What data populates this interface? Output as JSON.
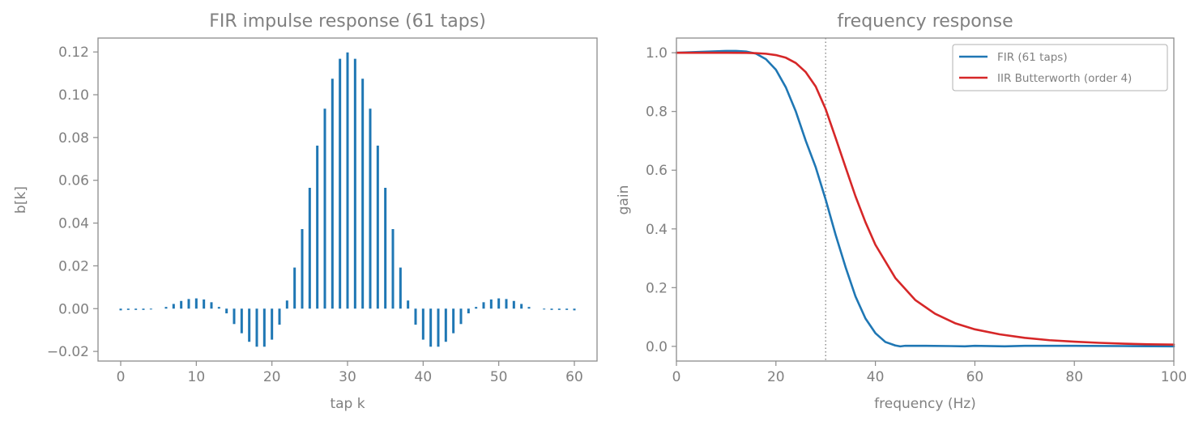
{
  "chart_data": [
    {
      "type": "bar",
      "subtype": "stem",
      "title": "FIR impulse response (61 taps)",
      "xlabel": "tap k",
      "ylabel": "b[k]",
      "xlim": [
        -3,
        63
      ],
      "ylim": [
        -0.0245,
        0.1265
      ],
      "xticks": [
        0,
        10,
        20,
        30,
        40,
        50,
        60
      ],
      "xtick_labels": [
        "0",
        "10",
        "20",
        "30",
        "40",
        "50",
        "60"
      ],
      "yticks": [
        -0.02,
        0.0,
        0.02,
        0.04,
        0.06,
        0.08,
        0.1,
        0.12
      ],
      "ytick_labels": [
        "−0.02",
        "0.00",
        "0.02",
        "0.04",
        "0.06",
        "0.08",
        "0.10",
        "0.12"
      ],
      "color": "#1f77b4",
      "grid": false,
      "x": [
        0,
        1,
        2,
        3,
        4,
        5,
        6,
        7,
        8,
        9,
        10,
        11,
        12,
        13,
        14,
        15,
        16,
        17,
        18,
        19,
        20,
        21,
        22,
        23,
        24,
        25,
        26,
        27,
        28,
        29,
        30,
        31,
        32,
        33,
        34,
        35,
        36,
        37,
        38,
        39,
        40,
        41,
        42,
        43,
        44,
        45,
        46,
        47,
        48,
        49,
        50,
        51,
        52,
        53,
        54,
        55,
        56,
        57,
        58,
        59,
        60
      ],
      "values": [
        -0.0008,
        -0.0006,
        -0.0006,
        -0.0006,
        -0.0004,
        0.0,
        0.0008,
        0.0022,
        0.0036,
        0.0045,
        0.0048,
        0.0043,
        0.003,
        0.0008,
        -0.0022,
        -0.0072,
        -0.0115,
        -0.0155,
        -0.0178,
        -0.0178,
        -0.0145,
        -0.0075,
        0.0038,
        0.0192,
        0.0372,
        0.0565,
        0.0762,
        0.0935,
        0.1075,
        0.1168,
        0.1198,
        0.1168,
        0.1075,
        0.0935,
        0.0762,
        0.0565,
        0.0372,
        0.0192,
        0.0038,
        -0.0075,
        -0.0145,
        -0.0178,
        -0.0178,
        -0.0155,
        -0.0115,
        -0.0072,
        -0.0022,
        0.0008,
        0.003,
        0.0043,
        0.0048,
        0.0045,
        0.0036,
        0.0022,
        0.0008,
        0.0,
        -0.0004,
        -0.0006,
        -0.0006,
        -0.0006,
        -0.0008
      ]
    },
    {
      "type": "line",
      "title": "frequency response",
      "xlabel": "frequency (Hz)",
      "ylabel": "gain",
      "xlim": [
        0,
        100
      ],
      "ylim": [
        -0.05,
        1.05
      ],
      "xticks": [
        0,
        20,
        40,
        60,
        80,
        100
      ],
      "xtick_labels": [
        "0",
        "20",
        "40",
        "60",
        "80",
        "100"
      ],
      "yticks": [
        0.0,
        0.2,
        0.4,
        0.6,
        0.8,
        1.0
      ],
      "ytick_labels": [
        "0.0",
        "0.2",
        "0.4",
        "0.6",
        "0.8",
        "1.0"
      ],
      "grid": false,
      "legend_position": "top-right",
      "vline": {
        "x": 30,
        "style": "dotted",
        "color": "#808080"
      },
      "series": [
        {
          "name": "FIR (61 taps)",
          "color": "#1f77b4",
          "x": [
            0,
            5,
            10,
            12,
            14,
            16,
            18,
            20,
            22,
            24,
            26,
            28,
            30,
            32,
            34,
            36,
            38,
            40,
            42,
            44,
            45,
            46,
            50,
            55,
            58,
            60,
            66,
            70,
            80,
            90,
            100
          ],
          "y": [
            1.0,
            1.003,
            1.006,
            1.006,
            1.004,
            0.997,
            0.978,
            0.942,
            0.882,
            0.8,
            0.7,
            0.61,
            0.5,
            0.38,
            0.27,
            0.17,
            0.095,
            0.045,
            0.015,
            0.003,
            0.0,
            0.002,
            0.002,
            0.001,
            0.0,
            0.002,
            0.0,
            0.002,
            0.002,
            0.001,
            0.0
          ]
        },
        {
          "name": "IIR Butterworth (order 4)",
          "color": "#d62728",
          "x": [
            0,
            5,
            10,
            14,
            16,
            18,
            20,
            22,
            24,
            26,
            28,
            30,
            32,
            34,
            36,
            38,
            40,
            44,
            48,
            52,
            56,
            60,
            65,
            70,
            75,
            80,
            85,
            90,
            95,
            100
          ],
          "y": [
            1.0,
            1.0,
            1.0,
            0.9995,
            0.9986,
            0.9966,
            0.992,
            0.983,
            0.965,
            0.934,
            0.885,
            0.808,
            0.71,
            0.61,
            0.511,
            0.423,
            0.346,
            0.233,
            0.158,
            0.111,
            0.079,
            0.058,
            0.041,
            0.029,
            0.021,
            0.016,
            0.012,
            0.009,
            0.007,
            0.006
          ]
        }
      ]
    }
  ]
}
